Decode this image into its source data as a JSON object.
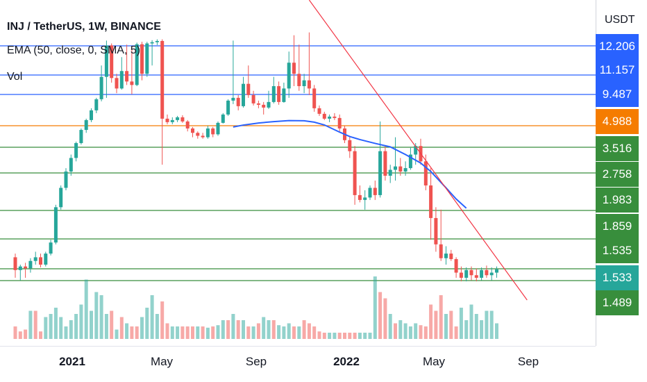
{
  "legend": {
    "title": "INJ / TetherUS, 1W, BINANCE",
    "ema": "EMA (50, close, 0, SMA, 5)",
    "vol": "Vol"
  },
  "axis": {
    "currency": "USDT"
  },
  "price_labels": [
    {
      "text": "12.206",
      "color": "#2962ff"
    },
    {
      "text": "11.157",
      "color": "#2962ff"
    },
    {
      "text": "9.487",
      "color": "#2962ff"
    },
    {
      "text": "4.988",
      "color": "#f57c00"
    },
    {
      "text": "3.516",
      "color": "#388e3c"
    },
    {
      "text": "2.758",
      "color": "#388e3c"
    },
    {
      "text": "1.983",
      "color": "#388e3c"
    },
    {
      "text": "1.859",
      "color": "#388e3c"
    },
    {
      "text": "1.535",
      "color": "#388e3c"
    },
    {
      "text": "1.533",
      "color": "#26a69a"
    },
    {
      "text": "1.489",
      "color": "#388e3c"
    }
  ],
  "time_labels": [
    {
      "text": "2021",
      "bold": true
    },
    {
      "text": "May",
      "bold": false
    },
    {
      "text": "Sep",
      "bold": false
    },
    {
      "text": "2022",
      "bold": true
    },
    {
      "text": "May",
      "bold": false
    },
    {
      "text": "Sep",
      "bold": false
    }
  ],
  "chart_data": {
    "type": "candlestick",
    "symbol": "INJ / TetherUS",
    "interval": "1W",
    "exchange": "BINANCE",
    "colors": {
      "up": "#26a69a",
      "down": "#ef5350",
      "ema": "#2962ff",
      "trendline": "#f23645"
    },
    "horizontal_levels": [
      {
        "price": 12.206,
        "color": "#2962ff"
      },
      {
        "price": 11.157,
        "color": "#2962ff"
      },
      {
        "price": 9.487,
        "color": "#2962ff"
      },
      {
        "price": 4.988,
        "color": "#f57c00"
      },
      {
        "price": 3.516,
        "color": "#388e3c"
      },
      {
        "price": 2.758,
        "color": "#388e3c"
      },
      {
        "price": 1.983,
        "color": "#388e3c"
      },
      {
        "price": 1.859,
        "color": "#388e3c"
      },
      {
        "price": 1.535,
        "color": "#388e3c"
      },
      {
        "price": 1.489,
        "color": "#388e3c"
      }
    ],
    "last_price": 1.533,
    "candles": [
      [
        1.66,
        1.7,
        1.5,
        1.53
      ],
      [
        1.53,
        1.58,
        1.49,
        1.56
      ],
      [
        1.56,
        1.6,
        1.5,
        1.54
      ],
      [
        1.54,
        1.65,
        1.52,
        1.62
      ],
      [
        1.62,
        1.72,
        1.58,
        1.66
      ],
      [
        1.66,
        1.7,
        1.55,
        1.58
      ],
      [
        1.58,
        1.72,
        1.56,
        1.7
      ],
      [
        1.7,
        1.85,
        1.68,
        1.82
      ],
      [
        1.82,
        2.1,
        1.8,
        2.05
      ],
      [
        2.05,
        2.5,
        2.0,
        2.45
      ],
      [
        2.45,
        2.9,
        2.4,
        2.8
      ],
      [
        2.8,
        3.3,
        2.7,
        3.2
      ],
      [
        3.2,
        3.9,
        3.1,
        3.8
      ],
      [
        3.8,
        4.8,
        3.7,
        4.7
      ],
      [
        4.7,
        6.0,
        4.5,
        5.8
      ],
      [
        5.8,
        7.5,
        5.5,
        7.2
      ],
      [
        7.2,
        9.0,
        6.8,
        8.8
      ],
      [
        8.8,
        11.5,
        8.5,
        11.0
      ],
      [
        11.0,
        13.5,
        9.0,
        12.3
      ],
      [
        12.3,
        12.8,
        10.5,
        10.9
      ],
      [
        10.9,
        11.2,
        9.6,
        10.0
      ],
      [
        10.0,
        11.8,
        9.9,
        11.3
      ],
      [
        11.3,
        12.5,
        10.3,
        10.6
      ],
      [
        10.6,
        12.2,
        9.5,
        10.3
      ],
      [
        10.3,
        13.0,
        10.2,
        12.6
      ],
      [
        12.6,
        13.2,
        10.7,
        11.2
      ],
      [
        11.2,
        13.2,
        11.0,
        12.8
      ],
      [
        12.8,
        13.6,
        11.5,
        13.1
      ],
      [
        13.1,
        13.8,
        12.4,
        13.4
      ],
      [
        13.4,
        13.8,
        3.0,
        6.0
      ],
      [
        6.0,
        6.6,
        5.2,
        5.5
      ],
      [
        5.5,
        6.2,
        5.2,
        5.8
      ],
      [
        5.8,
        6.4,
        5.5,
        6.2
      ],
      [
        6.2,
        6.5,
        5.4,
        5.6
      ],
      [
        5.6,
        5.8,
        4.6,
        4.8
      ],
      [
        4.8,
        4.9,
        4.2,
        4.5
      ],
      [
        4.5,
        4.6,
        4.1,
        4.3
      ],
      [
        4.3,
        4.5,
        4.1,
        4.2
      ],
      [
        4.2,
        5.0,
        4.1,
        4.8
      ],
      [
        4.8,
        4.9,
        4.2,
        4.4
      ],
      [
        4.4,
        5.6,
        4.3,
        5.4
      ],
      [
        5.4,
        6.8,
        5.3,
        6.6
      ],
      [
        6.6,
        8.8,
        6.4,
        8.6
      ],
      [
        8.6,
        13.5,
        8.1,
        9.0
      ],
      [
        9.0,
        9.4,
        7.2,
        7.8
      ],
      [
        7.8,
        11.0,
        7.6,
        10.4
      ],
      [
        10.4,
        11.5,
        9.0,
        9.4
      ],
      [
        9.4,
        9.8,
        7.9,
        8.2
      ],
      [
        8.2,
        8.6,
        7.5,
        8.0
      ],
      [
        8.0,
        8.4,
        6.6,
        7.6
      ],
      [
        7.6,
        9.8,
        7.4,
        8.4
      ],
      [
        8.4,
        11.0,
        8.2,
        10.2
      ],
      [
        10.2,
        10.6,
        8.0,
        8.4
      ],
      [
        8.4,
        10.5,
        8.3,
        10.0
      ],
      [
        10.0,
        12.0,
        9.0,
        11.6
      ],
      [
        11.6,
        14.8,
        10.2,
        11.2
      ],
      [
        11.2,
        12.5,
        9.8,
        10.2
      ],
      [
        10.2,
        11.2,
        9.6,
        10.7
      ],
      [
        10.7,
        15.5,
        9.4,
        10.0
      ],
      [
        10.0,
        10.3,
        7.0,
        7.5
      ],
      [
        7.5,
        7.9,
        6.4,
        6.7
      ],
      [
        6.7,
        7.0,
        5.8,
        6.0
      ],
      [
        6.0,
        6.6,
        5.5,
        6.3
      ],
      [
        6.3,
        6.8,
        5.8,
        6.1
      ],
      [
        6.1,
        6.6,
        4.6,
        4.8
      ],
      [
        4.8,
        5.0,
        3.8,
        4.0
      ],
      [
        4.0,
        4.2,
        3.2,
        3.4
      ],
      [
        3.4,
        3.6,
        2.1,
        2.3
      ],
      [
        2.3,
        2.5,
        2.15,
        2.2
      ],
      [
        2.2,
        2.4,
        2.0,
        2.25
      ],
      [
        2.25,
        2.5,
        2.2,
        2.45
      ],
      [
        2.45,
        2.6,
        2.2,
        2.3
      ],
      [
        2.3,
        5.6,
        2.25,
        3.4
      ],
      [
        3.4,
        3.6,
        2.6,
        2.7
      ],
      [
        2.7,
        3.0,
        2.55,
        2.85
      ],
      [
        2.85,
        4.2,
        2.6,
        2.95
      ],
      [
        2.95,
        3.2,
        2.7,
        2.8
      ],
      [
        2.8,
        3.1,
        2.7,
        2.9
      ],
      [
        2.9,
        3.5,
        2.85,
        3.3
      ],
      [
        3.3,
        3.8,
        3.0,
        3.6
      ],
      [
        3.6,
        4.1,
        3.0,
        3.1
      ],
      [
        3.1,
        3.3,
        2.4,
        2.5
      ],
      [
        2.5,
        2.9,
        1.85,
        1.95
      ],
      [
        1.95,
        2.05,
        1.72,
        1.8
      ],
      [
        1.8,
        2.0,
        1.62,
        1.65
      ],
      [
        1.65,
        1.78,
        1.58,
        1.7
      ],
      [
        1.7,
        1.74,
        1.62,
        1.64
      ],
      [
        1.64,
        1.66,
        1.5,
        1.52
      ],
      [
        1.52,
        1.56,
        1.48,
        1.5
      ],
      [
        1.5,
        1.55,
        1.48,
        1.53
      ],
      [
        1.53,
        1.56,
        1.49,
        1.51
      ],
      [
        1.51,
        1.54,
        1.48,
        1.5
      ],
      [
        1.5,
        1.55,
        1.49,
        1.53
      ],
      [
        1.53,
        1.57,
        1.5,
        1.51
      ],
      [
        1.51,
        1.55,
        1.49,
        1.52
      ],
      [
        1.52,
        1.56,
        1.5,
        1.533
      ]
    ],
    "volume": [
      [
        0,
        0.2
      ],
      [
        0,
        0.12
      ],
      [
        0,
        0.15
      ],
      [
        1,
        0.45
      ],
      [
        0,
        0.45
      ],
      [
        0,
        0.12
      ],
      [
        1,
        0.35
      ],
      [
        1,
        0.4
      ],
      [
        1,
        0.5
      ],
      [
        1,
        0.35
      ],
      [
        1,
        0.2
      ],
      [
        1,
        0.3
      ],
      [
        1,
        0.4
      ],
      [
        1,
        0.55
      ],
      [
        1,
        0.95
      ],
      [
        1,
        0.45
      ],
      [
        1,
        0.75
      ],
      [
        1,
        0.7
      ],
      [
        1,
        0.4
      ],
      [
        0,
        0.45
      ],
      [
        1,
        0.15
      ],
      [
        0,
        0.35
      ],
      [
        1,
        0.25
      ],
      [
        0,
        0.2
      ],
      [
        0,
        0.2
      ],
      [
        1,
        0.35
      ],
      [
        1,
        0.5
      ],
      [
        1,
        0.7
      ],
      [
        1,
        0.4
      ],
      [
        0,
        0.6
      ],
      [
        0,
        0.25
      ],
      [
        1,
        0.2
      ],
      [
        1,
        0.2
      ],
      [
        0,
        0.2
      ],
      [
        0,
        0.2
      ],
      [
        0,
        0.2
      ],
      [
        1,
        0.2
      ],
      [
        0,
        0.2
      ],
      [
        1,
        0.18
      ],
      [
        0,
        0.2
      ],
      [
        1,
        0.22
      ],
      [
        1,
        0.3
      ],
      [
        0,
        0.3
      ],
      [
        1,
        0.4
      ],
      [
        0,
        0.3
      ],
      [
        1,
        0.3
      ],
      [
        0,
        0.2
      ],
      [
        1,
        0.2
      ],
      [
        0,
        0.25
      ],
      [
        1,
        0.35
      ],
      [
        1,
        0.3
      ],
      [
        0,
        0.3
      ],
      [
        1,
        0.22
      ],
      [
        1,
        0.2
      ],
      [
        1,
        0.25
      ],
      [
        0,
        0.2
      ],
      [
        1,
        0.2
      ],
      [
        0,
        0.3
      ],
      [
        0,
        0.25
      ],
      [
        0,
        0.2
      ],
      [
        0,
        0.12
      ],
      [
        0,
        0.1
      ],
      [
        1,
        0.1
      ],
      [
        1,
        0.1
      ],
      [
        0,
        0.1
      ],
      [
        0,
        0.1
      ],
      [
        0,
        0.1
      ],
      [
        0,
        0.1
      ],
      [
        1,
        0.1
      ],
      [
        1,
        0.1
      ],
      [
        1,
        0.1
      ],
      [
        1,
        1.0
      ],
      [
        0,
        0.75
      ],
      [
        0,
        0.65
      ],
      [
        1,
        0.4
      ],
      [
        0,
        0.25
      ],
      [
        1,
        0.3
      ],
      [
        1,
        0.25
      ],
      [
        1,
        0.2
      ],
      [
        1,
        0.25
      ],
      [
        0,
        0.22
      ],
      [
        0,
        0.2
      ],
      [
        0,
        0.55
      ],
      [
        0,
        0.45
      ],
      [
        0,
        0.7
      ],
      [
        1,
        0.4
      ],
      [
        0,
        0.45
      ],
      [
        0,
        0.2
      ],
      [
        1,
        0.5
      ],
      [
        1,
        0.3
      ],
      [
        1,
        0.55
      ],
      [
        1,
        0.4
      ],
      [
        1,
        0.3
      ],
      [
        1,
        0.45
      ],
      [
        1,
        0.45
      ],
      [
        1,
        0.25
      ]
    ],
    "ema_line": [
      [
        43,
        4.9
      ],
      [
        45,
        5.08
      ],
      [
        48,
        5.38
      ],
      [
        51,
        5.58
      ],
      [
        54,
        5.72
      ],
      [
        57,
        5.7
      ],
      [
        59,
        5.5
      ],
      [
        61,
        5.1
      ],
      [
        64,
        4.55
      ],
      [
        66,
        4.25
      ],
      [
        68,
        4.04
      ],
      [
        71,
        3.78
      ],
      [
        74,
        3.54
      ],
      [
        77,
        3.3
      ],
      [
        80,
        3.05
      ],
      [
        82,
        2.8
      ],
      [
        85,
        2.45
      ],
      [
        87,
        2.22
      ],
      [
        89,
        2.03
      ]
    ],
    "trendline": {
      "from": [
        58,
        26.0
      ],
      "to": [
        101,
        1.26
      ]
    }
  }
}
